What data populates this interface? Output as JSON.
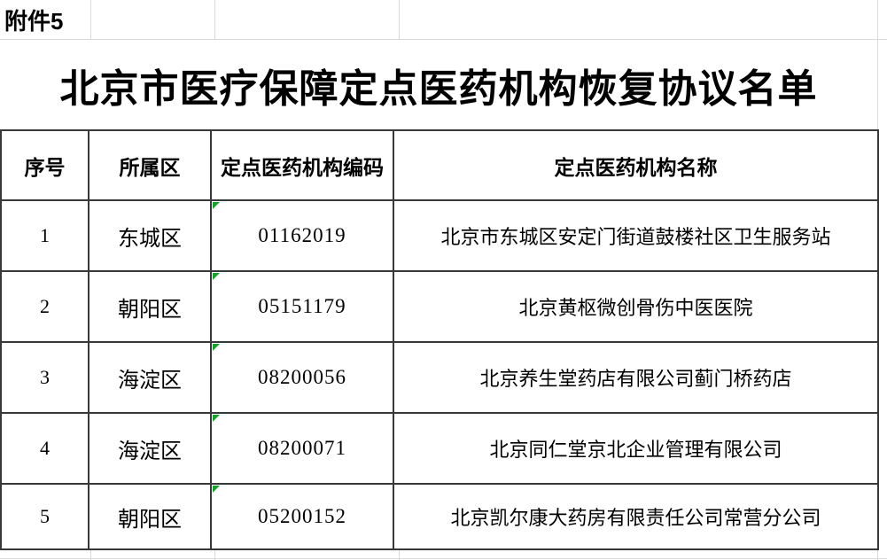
{
  "attachment_label": "附件5",
  "title": "北京市医疗保障定点医药机构恢复协议名单",
  "table": {
    "headers": [
      "序号",
      "所属区",
      "定点医药机构编码",
      "定点医药机构名称"
    ],
    "rows": [
      {
        "no": "1",
        "district": "东城区",
        "code": "01162019",
        "name": "北京市东城区安定门街道鼓楼社区卫生服务站"
      },
      {
        "no": "2",
        "district": "朝阳区",
        "code": "05151179",
        "name": "北京黄枢微创骨伤中医医院"
      },
      {
        "no": "3",
        "district": "海淀区",
        "code": "08200056",
        "name": "北京养生堂药店有限公司蓟门桥药店"
      },
      {
        "no": "4",
        "district": "海淀区",
        "code": "08200071",
        "name": "北京同仁堂京北企业管理有限公司"
      },
      {
        "no": "5",
        "district": "朝阳区",
        "code": "05200152",
        "name": "北京凯尔康大药房有限责任公司常营分公司"
      }
    ]
  },
  "icons": {
    "text_format_indicator": "green-corner-triangle"
  },
  "colors": {
    "background": "#ffffff",
    "text": "#000000",
    "table_border": "#383838",
    "gridline": "#d9d9d9",
    "indicator_green": "#18a12c"
  }
}
